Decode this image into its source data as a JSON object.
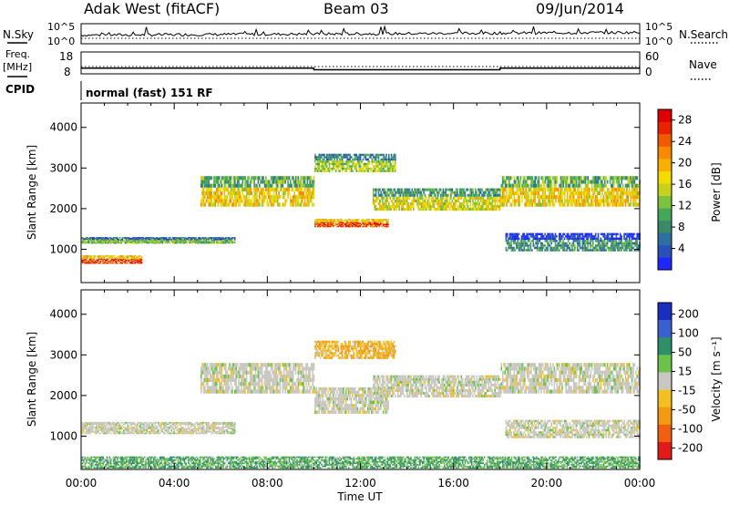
{
  "header": {
    "station": "Adak West (fitACF)",
    "beam": "Beam 03",
    "date": "09/Jun/2014"
  },
  "noise_panel": {
    "left_label": "N.Sky",
    "right_label": "N.Search",
    "yticks": [
      "10^5",
      "10^0"
    ]
  },
  "freq_panel": {
    "left_label_line1": "Freq.",
    "left_label_line2": "[MHz]",
    "left_ticks": [
      "18",
      "8"
    ],
    "right_ticks": [
      "60",
      "0"
    ],
    "right_label": "Nave",
    "freq_mhz": [
      {
        "from": "00:00",
        "to": "10:00",
        "value": 10.6
      },
      {
        "from": "10:00",
        "to": "18:00",
        "value": 9.9
      },
      {
        "from": "18:00",
        "to": "24:00",
        "value": 10.6
      }
    ]
  },
  "cpid_panel": {
    "label": "CPID",
    "program": "normal (fast) 151 RF"
  },
  "chart_data": [
    {
      "type": "heatmap",
      "title": "",
      "xlabel": "Time UT",
      "ylabel": "Slant Range [km]",
      "xticks": [
        "00:00",
        "04:00",
        "08:00",
        "12:00",
        "16:00",
        "20:00",
        "00:00"
      ],
      "yticks": [
        "1000",
        "2000",
        "3000",
        "4000"
      ],
      "xlim": [
        "00:00",
        "24:00"
      ],
      "ylim": [
        180,
        4600
      ],
      "colorbar": {
        "label": "Power [dB]",
        "ticks": [
          "4",
          "8",
          "12",
          "16",
          "20",
          "24",
          "28"
        ],
        "range": [
          0,
          30
        ],
        "colors": [
          "#1f27ff",
          "#2a4fb8",
          "#2f6fa0",
          "#3a8a6a",
          "#44a85a",
          "#7cc23a",
          "#c8d21e",
          "#f5dc00",
          "#f7b000",
          "#f78a00",
          "#f25a00",
          "#e82200",
          "#dd0000"
        ]
      },
      "series": [
        {
          "name": "Power",
          "bands": [
            {
              "t0": 0.0,
              "t1": 6.6,
              "range0": 1150,
              "range1": 1300,
              "level": 12
            },
            {
              "t0": 0.0,
              "t1": 2.6,
              "range0": 650,
              "range1": 850,
              "level": 26
            },
            {
              "t0": 5.1,
              "t1": 10.0,
              "range0": 2050,
              "range1": 2800,
              "level": 18
            },
            {
              "t0": 10.0,
              "t1": 13.2,
              "range0": 1550,
              "range1": 1750,
              "level": 26
            },
            {
              "t0": 10.0,
              "t1": 13.5,
              "range0": 2900,
              "range1": 3350,
              "level": 14
            },
            {
              "t0": 12.5,
              "t1": 18.0,
              "range0": 1950,
              "range1": 2500,
              "level": 16
            },
            {
              "t0": 18.0,
              "t1": 24.0,
              "range0": 2050,
              "range1": 2800,
              "level": 18
            },
            {
              "t0": 18.2,
              "t1": 24.0,
              "range0": 950,
              "range1": 1400,
              "level": 8
            }
          ]
        }
      ]
    },
    {
      "type": "heatmap",
      "title": "",
      "xlabel": "Time UT",
      "ylabel": "Slant Range [km]",
      "xticks": [
        "00:00",
        "04:00",
        "08:00",
        "12:00",
        "16:00",
        "20:00",
        "00:00"
      ],
      "yticks": [
        "1000",
        "2000",
        "3000",
        "4000"
      ],
      "xlim": [
        "00:00",
        "24:00"
      ],
      "ylim": [
        180,
        4600
      ],
      "colorbar": {
        "label": "Velocity [m s⁻¹]",
        "ticks": [
          "200",
          "100",
          "50",
          "15",
          "-15",
          "-50",
          "-100",
          "-200"
        ],
        "colors": [
          "#1a2fbf",
          "#3a5fd0",
          "#2f8f6a",
          "#6cc24a",
          "#c8c8c0",
          "#f2c020",
          "#f29a10",
          "#f06010",
          "#e21a1a"
        ]
      },
      "series": [
        {
          "name": "Velocity",
          "bands": [
            {
              "t0": 0.0,
              "t1": 6.6,
              "range0": 1050,
              "range1": 1350,
              "velocity": 0
            },
            {
              "t0": 5.1,
              "t1": 10.0,
              "range0": 2050,
              "range1": 2800,
              "velocity": 0
            },
            {
              "t0": 10.0,
              "t1": 13.2,
              "range0": 1550,
              "range1": 2200,
              "velocity": 0
            },
            {
              "t0": 10.0,
              "t1": 13.5,
              "range0": 2900,
              "range1": 3350,
              "velocity": -30
            },
            {
              "t0": 12.5,
              "t1": 18.0,
              "range0": 1950,
              "range1": 2500,
              "velocity": 0
            },
            {
              "t0": 18.0,
              "t1": 24.0,
              "range0": 2050,
              "range1": 2800,
              "velocity": 0
            },
            {
              "t0": 18.2,
              "t1": 24.0,
              "range0": 950,
              "range1": 1400,
              "velocity": 0
            },
            {
              "t0": 0.0,
              "t1": 24.0,
              "range0": 200,
              "range1": 500,
              "velocity": 30
            }
          ]
        }
      ]
    }
  ]
}
